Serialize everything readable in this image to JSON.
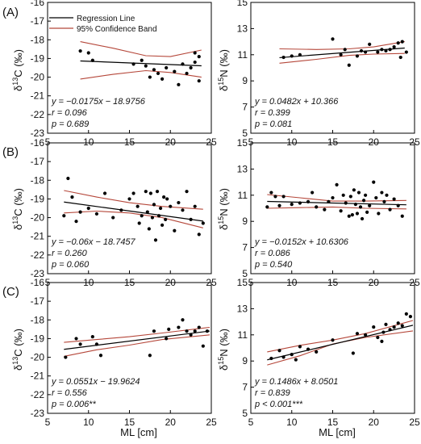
{
  "panel_labels": [
    "(A)",
    "(B)",
    "(C)"
  ],
  "legend": {
    "regression": "Regression Line",
    "confidence": "95% Confidence Band"
  },
  "x_axis_label": "ML [cm]",
  "y_axis_label_c": {
    "sup": "13",
    "rest": "C (‰)"
  },
  "y_axis_label_n": {
    "sup": "15",
    "rest": "N (‰)"
  },
  "colors": {
    "regression": "#000000",
    "confidence": "#b5473a",
    "points": "#000000"
  },
  "chart_data": [
    {
      "type": "scatter",
      "row": 0,
      "col": 0,
      "panel_label": "(A)",
      "xlim": [
        5,
        25
      ],
      "ylim": [
        -23,
        -16
      ],
      "xticks": [
        5,
        10,
        15,
        20,
        25
      ],
      "yticks": [
        -23,
        -22,
        -21,
        -20,
        -19,
        -18,
        -17,
        -16
      ],
      "xlabel": "",
      "ylabel": "δ13C (‰)",
      "stats": [
        "y = −0.0175x − 18.9756",
        "r = 0.096",
        "p = 0.689"
      ],
      "regression": {
        "slope": -0.0175,
        "intercept": -18.9756,
        "x_range": [
          9,
          23.8
        ]
      },
      "band": {
        "upper": [
          [
            9,
            -18.1
          ],
          [
            13,
            -18.45
          ],
          [
            17,
            -18.85
          ],
          [
            20,
            -18.9
          ],
          [
            23.8,
            -18.55
          ]
        ],
        "lower": [
          [
            9,
            -20.1
          ],
          [
            13,
            -19.85
          ],
          [
            17,
            -19.65
          ],
          [
            20,
            -19.75
          ],
          [
            23.8,
            -20.0
          ]
        ]
      },
      "points": [
        [
          9,
          -18.6
        ],
        [
          10,
          -18.7
        ],
        [
          10.5,
          -19.1
        ],
        [
          15.5,
          -19.3
        ],
        [
          16.5,
          -19.1
        ],
        [
          17,
          -19.4
        ],
        [
          17.5,
          -20.0
        ],
        [
          18,
          -19.6
        ],
        [
          18.5,
          -19.8
        ],
        [
          19,
          -20.1
        ],
        [
          19.5,
          -19.5
        ],
        [
          20.5,
          -19.7
        ],
        [
          21,
          -20.4
        ],
        [
          21.5,
          -19.3
        ],
        [
          22,
          -19.8
        ],
        [
          22.5,
          -19.5
        ],
        [
          23,
          -18.7
        ],
        [
          23,
          -19.2
        ],
        [
          23.5,
          -18.9
        ],
        [
          23.5,
          -20.2
        ]
      ]
    },
    {
      "type": "scatter",
      "row": 0,
      "col": 1,
      "xlim": [
        5,
        25
      ],
      "ylim": [
        5,
        15
      ],
      "xticks": [
        5,
        10,
        15,
        20,
        25
      ],
      "yticks": [
        5,
        7,
        9,
        11,
        13,
        15
      ],
      "xlabel": "",
      "ylabel": "δ15N (‰)",
      "stats": [
        "y = 0.0482x + 10.366",
        "r = 0.399",
        "p = 0.081"
      ],
      "regression": {
        "slope": 0.0482,
        "intercept": 10.366,
        "x_range": [
          8.5,
          23.8
        ]
      },
      "band": {
        "upper": [
          [
            8.5,
            11.45
          ],
          [
            13,
            11.4
          ],
          [
            17,
            11.45
          ],
          [
            20,
            11.6
          ],
          [
            23.8,
            12.0
          ]
        ],
        "lower": [
          [
            8.5,
            10.35
          ],
          [
            13,
            10.65
          ],
          [
            17,
            10.95
          ],
          [
            20,
            11.05
          ],
          [
            23.8,
            11.1
          ]
        ]
      },
      "points": [
        [
          9,
          10.8
        ],
        [
          10,
          10.9
        ],
        [
          11,
          11.0
        ],
        [
          15,
          12.2
        ],
        [
          16,
          11.0
        ],
        [
          16.5,
          11.4
        ],
        [
          17,
          10.2
        ],
        [
          18,
          10.9
        ],
        [
          18.5,
          11.3
        ],
        [
          19,
          11.2
        ],
        [
          19.5,
          11.8
        ],
        [
          20.5,
          11.2
        ],
        [
          21,
          11.4
        ],
        [
          21.5,
          11.3
        ],
        [
          22,
          11.4
        ],
        [
          22.5,
          11.6
        ],
        [
          23,
          11.9
        ],
        [
          23.3,
          10.8
        ],
        [
          23.5,
          12.0
        ],
        [
          24,
          11.2
        ]
      ]
    },
    {
      "type": "scatter",
      "row": 1,
      "col": 0,
      "panel_label": "(B)",
      "xlim": [
        5,
        25
      ],
      "ylim": [
        -23,
        -16
      ],
      "xticks": [
        5,
        10,
        15,
        20,
        25
      ],
      "yticks": [
        -23,
        -22,
        -21,
        -20,
        -19,
        -18,
        -17,
        -16
      ],
      "xlabel": "",
      "ylabel": "δ13C (‰)",
      "stats": [
        "y = −0.06x − 18.7457",
        "r = 0.260",
        "p = 0.060"
      ],
      "regression": {
        "slope": -0.06,
        "intercept": -18.7457,
        "x_range": [
          7,
          24
        ]
      },
      "band": {
        "upper": [
          [
            7,
            -18.55
          ],
          [
            11,
            -18.9
          ],
          [
            15,
            -19.2
          ],
          [
            19,
            -19.4
          ],
          [
            24,
            -19.55
          ]
        ],
        "lower": [
          [
            7,
            -19.75
          ],
          [
            11,
            -19.65
          ],
          [
            15,
            -19.75
          ],
          [
            19,
            -20.0
          ],
          [
            24,
            -20.55
          ]
        ]
      },
      "points": [
        [
          7,
          -19.9
        ],
        [
          7.5,
          -17.9
        ],
        [
          8,
          -18.9
        ],
        [
          8.5,
          -20.2
        ],
        [
          9,
          -19.7
        ],
        [
          10,
          -19.5
        ],
        [
          11,
          -19.8
        ],
        [
          12,
          -18.7
        ],
        [
          13,
          -20.0
        ],
        [
          14,
          -19.6
        ],
        [
          15,
          -19.0
        ],
        [
          15.5,
          -18.7
        ],
        [
          16,
          -19.4
        ],
        [
          16.2,
          -20.3
        ],
        [
          16.5,
          -19.9
        ],
        [
          17,
          -18.6
        ],
        [
          17.2,
          -19.7
        ],
        [
          17.4,
          -20.6
        ],
        [
          17.6,
          -18.7
        ],
        [
          17.8,
          -20.0
        ],
        [
          18,
          -19.3
        ],
        [
          18.2,
          -21.2
        ],
        [
          18.4,
          -18.6
        ],
        [
          18.6,
          -19.9
        ],
        [
          18.8,
          -19.5
        ],
        [
          19,
          -20.4
        ],
        [
          19.2,
          -18.9
        ],
        [
          19.4,
          -20.1
        ],
        [
          19.6,
          -19.0
        ],
        [
          20,
          -19.4
        ],
        [
          20.5,
          -20.7
        ],
        [
          21,
          -19.2
        ],
        [
          21.5,
          -19.6
        ],
        [
          22,
          -18.6
        ],
        [
          22.5,
          -20.1
        ],
        [
          23,
          -19.4
        ],
        [
          23.5,
          -20.9
        ],
        [
          24,
          -20.3
        ]
      ]
    },
    {
      "type": "scatter",
      "row": 1,
      "col": 1,
      "xlim": [
        5,
        25
      ],
      "ylim": [
        5,
        15
      ],
      "xticks": [
        5,
        10,
        15,
        20,
        25
      ],
      "yticks": [
        5,
        7,
        9,
        11,
        13,
        15
      ],
      "xlabel": "",
      "ylabel": "δ15N (‰)",
      "stats": [
        "y = −0.0152x + 10.6306",
        "r = 0.086",
        "p = 0.540"
      ],
      "regression": {
        "slope": -0.0152,
        "intercept": 10.6306,
        "x_range": [
          7,
          24
        ]
      },
      "band": {
        "upper": [
          [
            7,
            11.05
          ],
          [
            11,
            10.8
          ],
          [
            15,
            10.55
          ],
          [
            19,
            10.55
          ],
          [
            24,
            10.6
          ]
        ],
        "lower": [
          [
            7,
            10.0
          ],
          [
            11,
            10.05
          ],
          [
            15,
            10.1
          ],
          [
            19,
            10.0
          ],
          [
            24,
            9.95
          ]
        ]
      },
      "points": [
        [
          7,
          10.1
        ],
        [
          7.5,
          11.2
        ],
        [
          8,
          10.9
        ],
        [
          8.5,
          10.2
        ],
        [
          9,
          10.9
        ],
        [
          10,
          10.3
        ],
        [
          11,
          10.4
        ],
        [
          12,
          10.5
        ],
        [
          12.5,
          11.2
        ],
        [
          13,
          10.1
        ],
        [
          14,
          9.9
        ],
        [
          14.5,
          10.5
        ],
        [
          15,
          10.8
        ],
        [
          15.5,
          11.8
        ],
        [
          16,
          9.8
        ],
        [
          16.3,
          11.0
        ],
        [
          16.6,
          10.4
        ],
        [
          17,
          9.4
        ],
        [
          17.2,
          10.9
        ],
        [
          17.4,
          9.5
        ],
        [
          17.6,
          11.4
        ],
        [
          17.8,
          10.3
        ],
        [
          18,
          9.6
        ],
        [
          18.2,
          11.2
        ],
        [
          18.4,
          10.1
        ],
        [
          18.6,
          9.2
        ],
        [
          18.8,
          10.6
        ],
        [
          19,
          11.0
        ],
        [
          19.2,
          9.7
        ],
        [
          19.5,
          10.2
        ],
        [
          20,
          12.0
        ],
        [
          20.3,
          10.8
        ],
        [
          20.6,
          9.6
        ],
        [
          21,
          11.2
        ],
        [
          21.3,
          10.5
        ],
        [
          21.6,
          11.0
        ],
        [
          22,
          9.9
        ],
        [
          22.5,
          10.7
        ],
        [
          23,
          10.2
        ],
        [
          23.5,
          9.4
        ]
      ]
    },
    {
      "type": "scatter",
      "row": 2,
      "col": 0,
      "panel_label": "(C)",
      "xlim": [
        5,
        25
      ],
      "ylim": [
        -23,
        -16
      ],
      "xticks": [
        5,
        10,
        15,
        20,
        25
      ],
      "yticks": [
        -23,
        -22,
        -21,
        -20,
        -19,
        -18,
        -17,
        -16
      ],
      "xlabel": "ML [cm]",
      "ylabel": "δ13C (‰)",
      "stats": [
        "y = 0.0551x − 19.9624",
        "r = 0.556",
        "p = 0.006**"
      ],
      "regression": {
        "slope": 0.0551,
        "intercept": -19.9624,
        "x_range": [
          7,
          24.8
        ]
      },
      "band": {
        "upper": [
          [
            7,
            -19.2
          ],
          [
            11,
            -19.05
          ],
          [
            15,
            -18.9
          ],
          [
            19,
            -18.7
          ],
          [
            24.8,
            -18.4
          ]
        ],
        "lower": [
          [
            7,
            -19.95
          ],
          [
            11,
            -19.6
          ],
          [
            15,
            -19.35
          ],
          [
            19,
            -19.05
          ],
          [
            24.8,
            -18.8
          ]
        ]
      },
      "points": [
        [
          7.2,
          -20.0
        ],
        [
          8.5,
          -19.0
        ],
        [
          9,
          -19.3
        ],
        [
          10.5,
          -18.9
        ],
        [
          11,
          -19.3
        ],
        [
          11.5,
          -19.9
        ],
        [
          17.5,
          -19.9
        ],
        [
          18,
          -18.6
        ],
        [
          19.5,
          -19.0
        ],
        [
          19.8,
          -18.5
        ],
        [
          21,
          -18.4
        ],
        [
          21.5,
          -18.0
        ],
        [
          22,
          -18.6
        ],
        [
          22.5,
          -18.8
        ],
        [
          23,
          -18.6
        ],
        [
          23.5,
          -18.4
        ],
        [
          24,
          -19.4
        ],
        [
          24.5,
          -18.6
        ]
      ]
    },
    {
      "type": "scatter",
      "row": 2,
      "col": 1,
      "xlim": [
        5,
        25
      ],
      "ylim": [
        5,
        15
      ],
      "xticks": [
        5,
        10,
        15,
        20,
        25
      ],
      "yticks": [
        5,
        7,
        9,
        11,
        13,
        15
      ],
      "xlabel": "ML [cm]",
      "ylabel": "δ15N (‰)",
      "stats": [
        "y = 0.1486x + 8.0501",
        "r = 0.839",
        "p < 0.001***"
      ],
      "regression": {
        "slope": 0.1486,
        "intercept": 8.0501,
        "x_range": [
          7,
          24.8
        ]
      },
      "band": {
        "upper": [
          [
            7,
            9.7
          ],
          [
            11,
            10.2
          ],
          [
            15,
            10.6
          ],
          [
            19,
            11.1
          ],
          [
            24.8,
            12.1
          ]
        ],
        "lower": [
          [
            7,
            8.7
          ],
          [
            11,
            9.4
          ],
          [
            15,
            10.3
          ],
          [
            19,
            10.8
          ],
          [
            24.8,
            11.3
          ]
        ]
      },
      "points": [
        [
          7.5,
          9.2
        ],
        [
          8.5,
          9.8
        ],
        [
          9,
          9.3
        ],
        [
          10,
          9.5
        ],
        [
          10.5,
          9.1
        ],
        [
          11,
          10.1
        ],
        [
          12,
          9.9
        ],
        [
          13,
          9.7
        ],
        [
          15,
          10.6
        ],
        [
          17.5,
          9.6
        ],
        [
          18,
          11.1
        ],
        [
          19,
          11.0
        ],
        [
          20,
          11.6
        ],
        [
          20.5,
          10.8
        ],
        [
          21,
          10.5
        ],
        [
          21.2,
          11.2
        ],
        [
          21.5,
          11.8
        ],
        [
          22,
          11.4
        ],
        [
          22.5,
          11.6
        ],
        [
          23,
          11.9
        ],
        [
          23.5,
          11.7
        ],
        [
          24,
          12.6
        ],
        [
          24.5,
          12.4
        ]
      ]
    }
  ]
}
